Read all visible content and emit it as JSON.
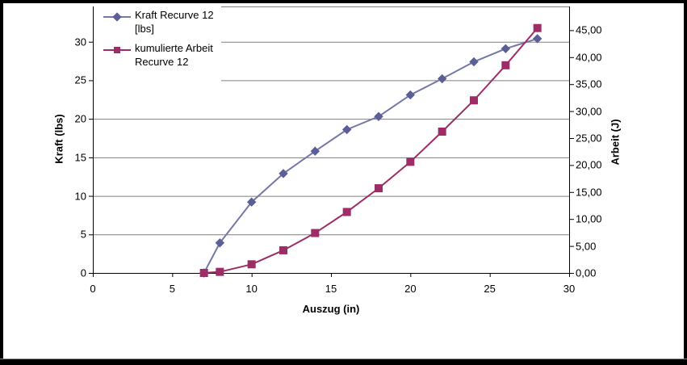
{
  "window": {
    "background": "#ffffff",
    "frame_color": "#000000"
  },
  "chart_data": {
    "type": "line",
    "title": "",
    "xlabel": "Auszug (in)",
    "ylabel_left": "Kraft (lbs)",
    "ylabel_right": "Arbeit (J)",
    "xlim": [
      0,
      30
    ],
    "ylim_left": [
      0,
      35
    ],
    "ylim_right": [
      0,
      50
    ],
    "x_ticks": [
      0,
      5,
      10,
      15,
      20,
      25,
      30
    ],
    "y_ticks_left": [
      0,
      5,
      10,
      15,
      20,
      25,
      30
    ],
    "y_ticks_right": [
      {
        "value": 0,
        "label": "0,00"
      },
      {
        "value": 5,
        "label": "5,00"
      },
      {
        "value": 10,
        "label": "10,00"
      },
      {
        "value": 15,
        "label": "15,00"
      },
      {
        "value": 20,
        "label": "20,00"
      },
      {
        "value": 25,
        "label": "25,00"
      },
      {
        "value": 30,
        "label": "30,00"
      },
      {
        "value": 35,
        "label": "35,00"
      },
      {
        "value": 40,
        "label": "40,00"
      },
      {
        "value": 45,
        "label": "45,00"
      }
    ],
    "grid": "horizontal-major",
    "gridline_color": "#808080",
    "axis_color": "#000000",
    "legend": {
      "position": "top-left-inside",
      "entries": [
        {
          "series": "kraft",
          "lines": [
            "Kraft Recurve 12",
            "[lbs]"
          ]
        },
        {
          "series": "arbeit",
          "lines": [
            "kumulierte Arbeit",
            "Recurve 12"
          ]
        }
      ]
    },
    "series": [
      {
        "id": "kraft",
        "name": "Kraft Recurve 12 [lbs]",
        "axis": "left",
        "marker": "diamond",
        "line_color": "#7478a6",
        "marker_color": "#5b5f96",
        "points": [
          [
            7,
            0
          ],
          [
            8,
            3.9
          ],
          [
            10,
            9.2
          ],
          [
            12,
            12.9
          ],
          [
            14,
            15.8
          ],
          [
            16,
            18.6
          ],
          [
            18,
            20.3
          ],
          [
            20,
            23.1
          ],
          [
            22,
            25.2
          ],
          [
            24,
            27.4
          ],
          [
            26,
            29.1
          ],
          [
            28,
            30.4
          ]
        ]
      },
      {
        "id": "arbeit",
        "name": "kumulierte Arbeit Recurve 12",
        "axis": "right",
        "marker": "square",
        "line_color": "#9d2d66",
        "marker_color": "#9d2d66",
        "points": [
          [
            7,
            0
          ],
          [
            8,
            0.2
          ],
          [
            10,
            1.6
          ],
          [
            12,
            4.2
          ],
          [
            14,
            7.4
          ],
          [
            16,
            11.3
          ],
          [
            18,
            15.7
          ],
          [
            20,
            20.6
          ],
          [
            22,
            26.2
          ],
          [
            24,
            32.0
          ],
          [
            26,
            38.5
          ],
          [
            28,
            45.4
          ]
        ]
      }
    ]
  }
}
